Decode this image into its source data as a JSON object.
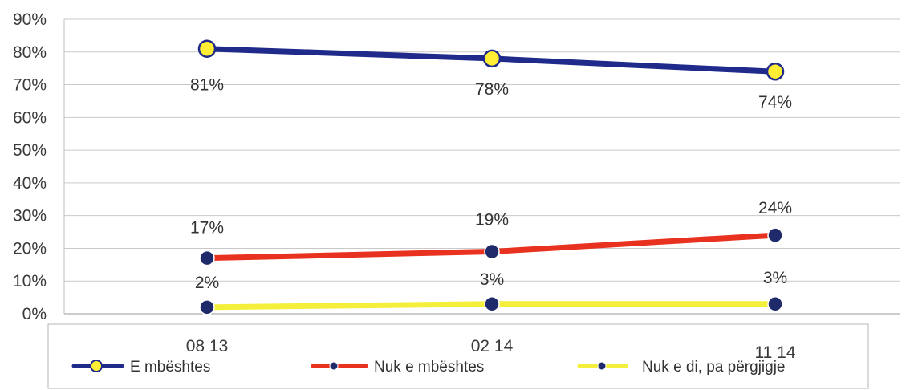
{
  "chart_data": {
    "type": "line",
    "title": "",
    "xlabel": "",
    "ylabel": "",
    "categories": [
      "08 13",
      "02 14",
      "11 14"
    ],
    "ylim": [
      0,
      90
    ],
    "yticks": [
      0,
      10,
      20,
      30,
      40,
      50,
      60,
      70,
      80,
      90
    ],
    "ytick_labels": [
      "0%",
      "10%",
      "20%",
      "30%",
      "40%",
      "50%",
      "60%",
      "70%",
      "80%",
      "90%"
    ],
    "grid": true,
    "legend_position": "bottom",
    "series": [
      {
        "name": "E mbështes",
        "values": [
          81,
          78,
          74
        ],
        "labels": [
          "81%",
          "78%",
          "74%"
        ],
        "line_color": "#1f2a8a",
        "marker_color": "#ffee33",
        "marker_stroke": "#1f2a8a"
      },
      {
        "name": "Nuk e mbështes",
        "values": [
          17,
          19,
          24
        ],
        "labels": [
          "17%",
          "19%",
          "24%"
        ],
        "line_color": "#e8321f",
        "marker_color": "#1f2a6a",
        "marker_stroke": "#ffffff"
      },
      {
        "name": "Nuk e di, pa përgjigje",
        "values": [
          2,
          3,
          3
        ],
        "labels": [
          "2%",
          "3%",
          "3%"
        ],
        "line_color": "#f4ef3a",
        "marker_color": "#1f2a6a",
        "marker_stroke": "#ffffff"
      }
    ]
  }
}
